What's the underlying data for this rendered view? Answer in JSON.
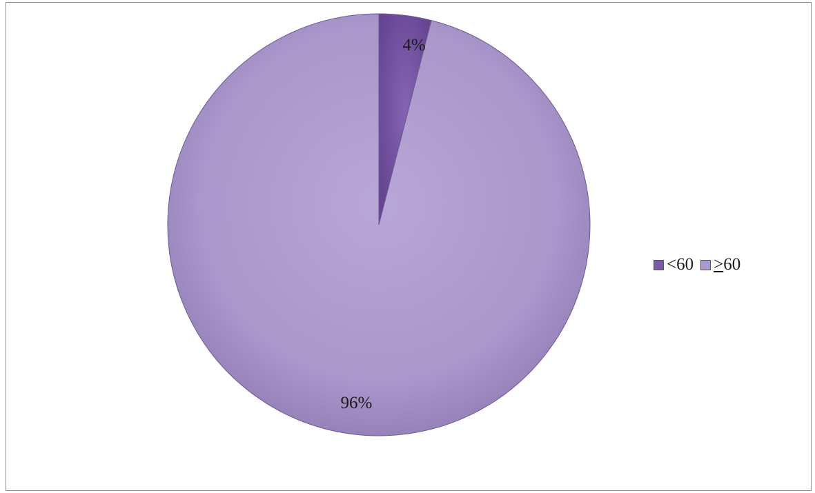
{
  "chart_data": {
    "type": "pie",
    "title": "",
    "categories": [
      "<60",
      "> 60"
    ],
    "values": [
      4,
      96
    ],
    "data_labels": [
      "4%",
      "96%"
    ],
    "legend_position": "right",
    "colors": [
      "#7b5aa8",
      "#ad9acc"
    ],
    "start_angle": "top",
    "direction": "clockwise"
  },
  "legend": {
    "items": [
      {
        "symbol": "",
        "label": "<60",
        "color": "#7b5aa8"
      },
      {
        "symbol": ">",
        "label": " 60",
        "color": "#ad9acc"
      }
    ]
  }
}
